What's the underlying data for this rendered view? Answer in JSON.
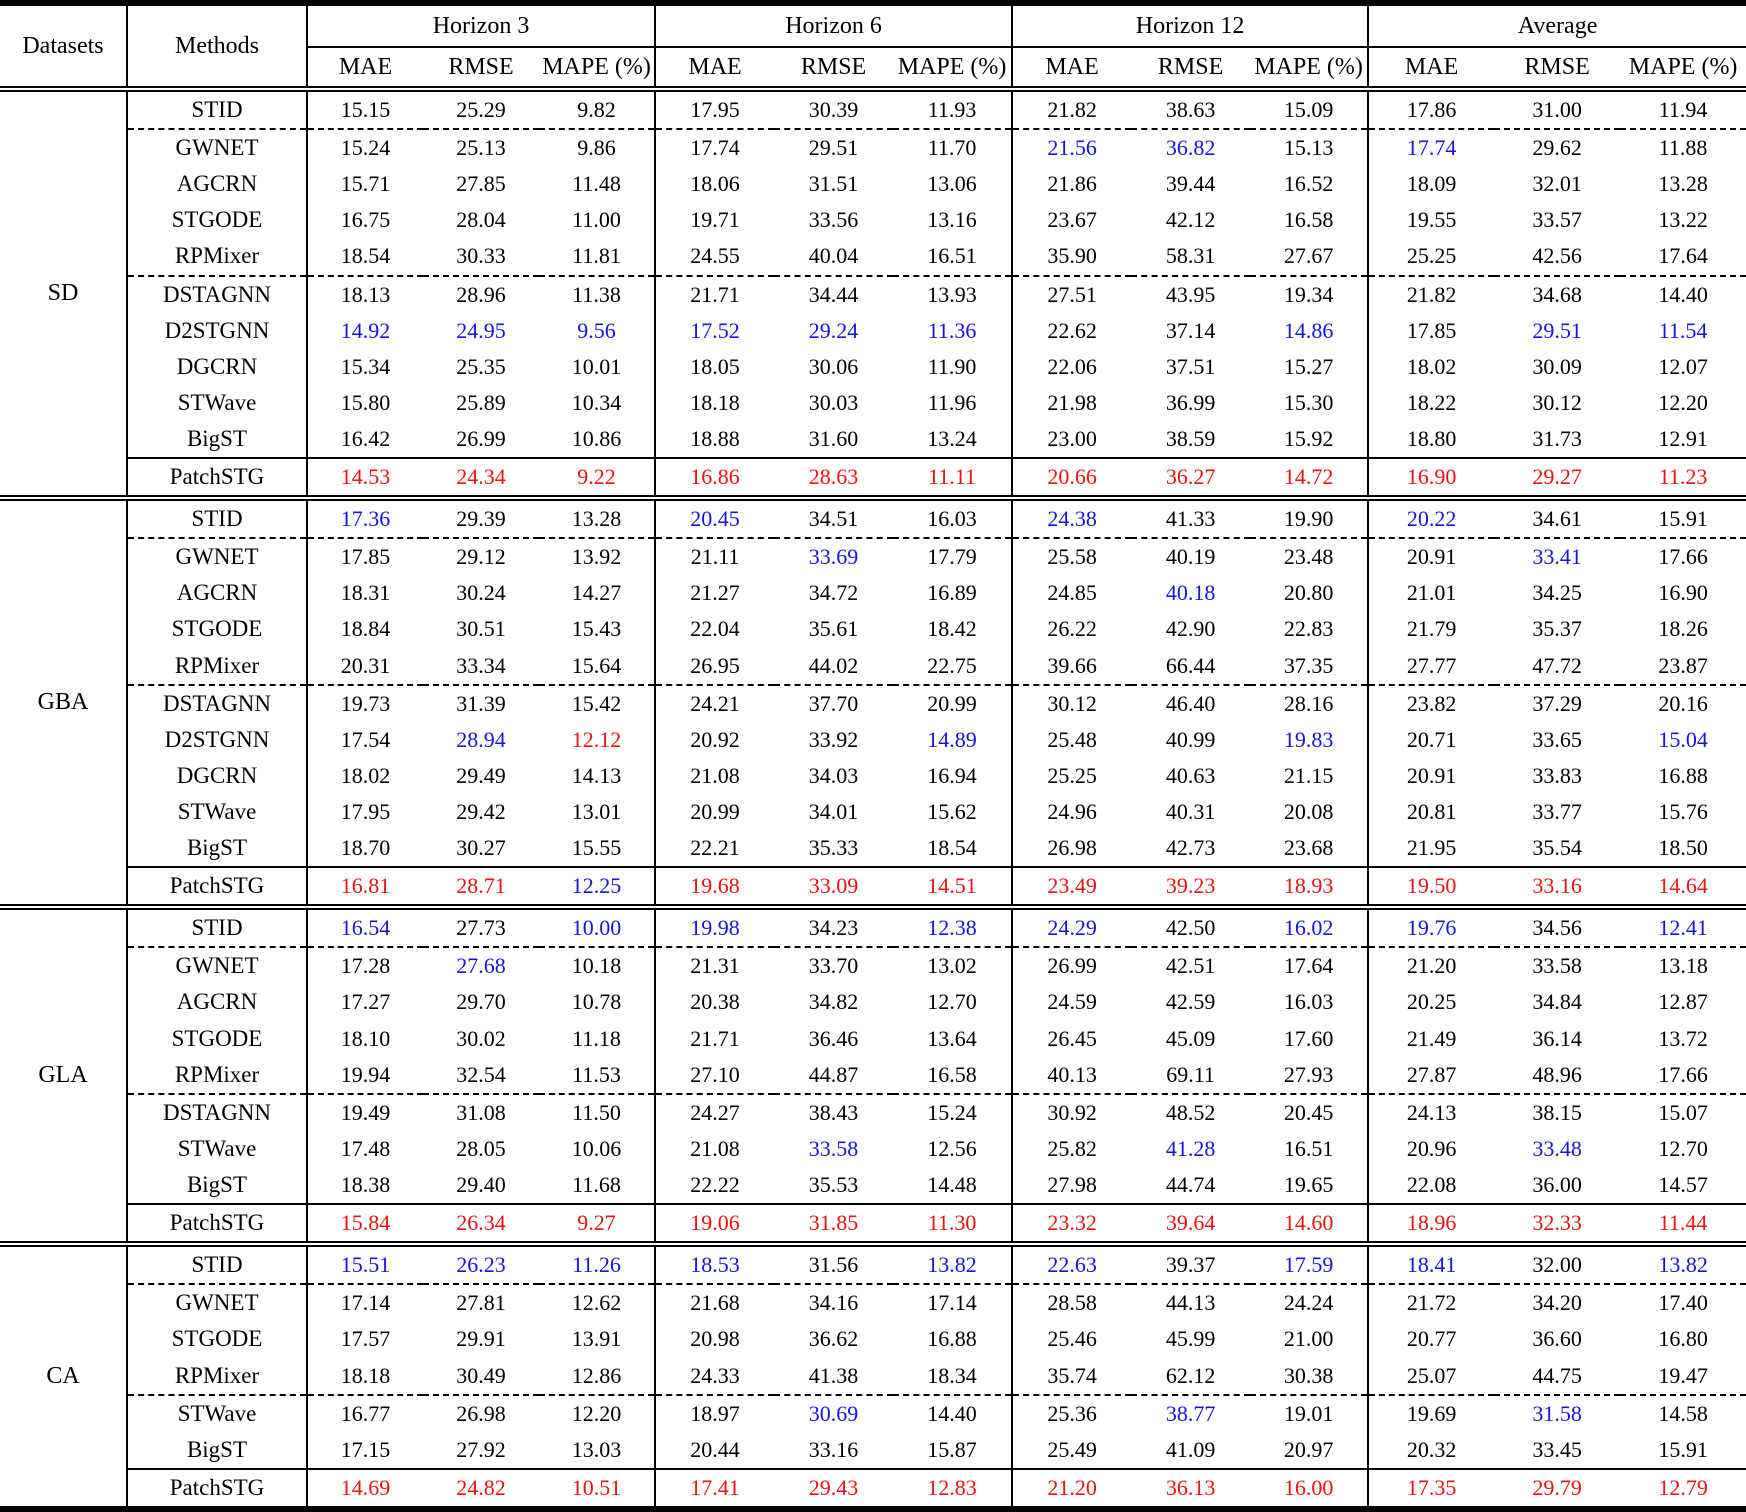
{
  "table": {
    "header": {
      "datasets_label": "Datasets",
      "methods_label": "Methods",
      "groups": [
        {
          "label": "Horizon 3",
          "cols": [
            "MAE",
            "RMSE",
            "MAPE (%)"
          ]
        },
        {
          "label": "Horizon 6",
          "cols": [
            "MAE",
            "RMSE",
            "MAPE (%)"
          ]
        },
        {
          "label": "Horizon 12",
          "cols": [
            "MAE",
            "RMSE",
            "MAPE (%)"
          ]
        },
        {
          "label": "Average",
          "cols": [
            "MAE",
            "RMSE",
            "MAPE (%)"
          ]
        }
      ]
    },
    "emphasis_colors": {
      "best": "#ee1111",
      "second_best": "#1414e0",
      "normal": "#000000"
    },
    "emphasis_legend": {
      "r": "best (red)",
      "b": "second best (blue)",
      "k": "normal (black)"
    },
    "sections": [
      {
        "dataset": "SD",
        "rows": [
          {
            "method": "STID",
            "values": [
              "15.15",
              "25.29",
              "9.82",
              "17.95",
              "30.39",
              "11.93",
              "21.82",
              "38.63",
              "15.09",
              "17.86",
              "31.00",
              "11.94"
            ],
            "styles": "kkkkkkkkkkkk",
            "rule_below": "dashed"
          },
          {
            "method": "GWNET",
            "values": [
              "15.24",
              "25.13",
              "9.86",
              "17.74",
              "29.51",
              "11.70",
              "21.56",
              "36.82",
              "15.13",
              "17.74",
              "29.62",
              "11.88"
            ],
            "styles": "kkkkkkbbkbkk"
          },
          {
            "method": "AGCRN",
            "values": [
              "15.71",
              "27.85",
              "11.48",
              "18.06",
              "31.51",
              "13.06",
              "21.86",
              "39.44",
              "16.52",
              "18.09",
              "32.01",
              "13.28"
            ],
            "styles": "kkkkkkkkkkkk"
          },
          {
            "method": "STGODE",
            "values": [
              "16.75",
              "28.04",
              "11.00",
              "19.71",
              "33.56",
              "13.16",
              "23.67",
              "42.12",
              "16.58",
              "19.55",
              "33.57",
              "13.22"
            ],
            "styles": "kkkkkkkkkkkk"
          },
          {
            "method": "RPMixer",
            "values": [
              "18.54",
              "30.33",
              "11.81",
              "24.55",
              "40.04",
              "16.51",
              "35.90",
              "58.31",
              "27.67",
              "25.25",
              "42.56",
              "17.64"
            ],
            "styles": "kkkkkkkkkkkk",
            "rule_below": "dashed"
          },
          {
            "method": "DSTAGNN",
            "values": [
              "18.13",
              "28.96",
              "11.38",
              "21.71",
              "34.44",
              "13.93",
              "27.51",
              "43.95",
              "19.34",
              "21.82",
              "34.68",
              "14.40"
            ],
            "styles": "kkkkkkkkkkkk"
          },
          {
            "method": "D2STGNN",
            "values": [
              "14.92",
              "24.95",
              "9.56",
              "17.52",
              "29.24",
              "11.36",
              "22.62",
              "37.14",
              "14.86",
              "17.85",
              "29.51",
              "11.54"
            ],
            "styles": "bbbbbbkkbkbb"
          },
          {
            "method": "DGCRN",
            "values": [
              "15.34",
              "25.35",
              "10.01",
              "18.05",
              "30.06",
              "11.90",
              "22.06",
              "37.51",
              "15.27",
              "18.02",
              "30.09",
              "12.07"
            ],
            "styles": "kkkkkkkkkkkk"
          },
          {
            "method": "STWave",
            "values": [
              "15.80",
              "25.89",
              "10.34",
              "18.18",
              "30.03",
              "11.96",
              "21.98",
              "36.99",
              "15.30",
              "18.22",
              "30.12",
              "12.20"
            ],
            "styles": "kkkkkkkkkkkk"
          },
          {
            "method": "BigST",
            "values": [
              "16.42",
              "26.99",
              "10.86",
              "18.88",
              "31.60",
              "13.24",
              "23.00",
              "38.59",
              "15.92",
              "18.80",
              "31.73",
              "12.91"
            ],
            "styles": "kkkkkkkkkkkk"
          },
          {
            "method": "PatchSTG",
            "values": [
              "14.53",
              "24.34",
              "9.22",
              "16.86",
              "28.63",
              "11.11",
              "20.66",
              "36.27",
              "14.72",
              "16.90",
              "29.27",
              "11.23"
            ],
            "styles": "rrrrrrrrrrrr",
            "rule_above": "solid"
          }
        ]
      },
      {
        "dataset": "GBA",
        "rows": [
          {
            "method": "STID",
            "values": [
              "17.36",
              "29.39",
              "13.28",
              "20.45",
              "34.51",
              "16.03",
              "24.38",
              "41.33",
              "19.90",
              "20.22",
              "34.61",
              "15.91"
            ],
            "styles": "bkkbkkbkkbkk",
            "rule_below": "dashed"
          },
          {
            "method": "GWNET",
            "values": [
              "17.85",
              "29.12",
              "13.92",
              "21.11",
              "33.69",
              "17.79",
              "25.58",
              "40.19",
              "23.48",
              "20.91",
              "33.41",
              "17.66"
            ],
            "styles": "kkkkbkkkkkbk"
          },
          {
            "method": "AGCRN",
            "values": [
              "18.31",
              "30.24",
              "14.27",
              "21.27",
              "34.72",
              "16.89",
              "24.85",
              "40.18",
              "20.80",
              "21.01",
              "34.25",
              "16.90"
            ],
            "styles": "kkkkkkkbkkkk"
          },
          {
            "method": "STGODE",
            "values": [
              "18.84",
              "30.51",
              "15.43",
              "22.04",
              "35.61",
              "18.42",
              "26.22",
              "42.90",
              "22.83",
              "21.79",
              "35.37",
              "18.26"
            ],
            "styles": "kkkkkkkkkkkk"
          },
          {
            "method": "RPMixer",
            "values": [
              "20.31",
              "33.34",
              "15.64",
              "26.95",
              "44.02",
              "22.75",
              "39.66",
              "66.44",
              "37.35",
              "27.77",
              "47.72",
              "23.87"
            ],
            "styles": "kkkkkkkkkkkk",
            "rule_below": "dashed"
          },
          {
            "method": "DSTAGNN",
            "values": [
              "19.73",
              "31.39",
              "15.42",
              "24.21",
              "37.70",
              "20.99",
              "30.12",
              "46.40",
              "28.16",
              "23.82",
              "37.29",
              "20.16"
            ],
            "styles": "kkkkkkkkkkkk"
          },
          {
            "method": "D2STGNN",
            "values": [
              "17.54",
              "28.94",
              "12.12",
              "20.92",
              "33.92",
              "14.89",
              "25.48",
              "40.99",
              "19.83",
              "20.71",
              "33.65",
              "15.04"
            ],
            "styles": "kbrkkbkkbkkb"
          },
          {
            "method": "DGCRN",
            "values": [
              "18.02",
              "29.49",
              "14.13",
              "21.08",
              "34.03",
              "16.94",
              "25.25",
              "40.63",
              "21.15",
              "20.91",
              "33.83",
              "16.88"
            ],
            "styles": "kkkkkkkkkkkk"
          },
          {
            "method": "STWave",
            "values": [
              "17.95",
              "29.42",
              "13.01",
              "20.99",
              "34.01",
              "15.62",
              "24.96",
              "40.31",
              "20.08",
              "20.81",
              "33.77",
              "15.76"
            ],
            "styles": "kkkkkkkkkkkk"
          },
          {
            "method": "BigST",
            "values": [
              "18.70",
              "30.27",
              "15.55",
              "22.21",
              "35.33",
              "18.54",
              "26.98",
              "42.73",
              "23.68",
              "21.95",
              "35.54",
              "18.50"
            ],
            "styles": "kkkkkkkkkkkk"
          },
          {
            "method": "PatchSTG",
            "values": [
              "16.81",
              "28.71",
              "12.25",
              "19.68",
              "33.09",
              "14.51",
              "23.49",
              "39.23",
              "18.93",
              "19.50",
              "33.16",
              "14.64"
            ],
            "styles": "rrbrrrrrrrrr",
            "rule_above": "solid"
          }
        ]
      },
      {
        "dataset": "GLA",
        "rows": [
          {
            "method": "STID",
            "values": [
              "16.54",
              "27.73",
              "10.00",
              "19.98",
              "34.23",
              "12.38",
              "24.29",
              "42.50",
              "16.02",
              "19.76",
              "34.56",
              "12.41"
            ],
            "styles": "bkbbkbbkbbkb",
            "rule_below": "dashed"
          },
          {
            "method": "GWNET",
            "values": [
              "17.28",
              "27.68",
              "10.18",
              "21.31",
              "33.70",
              "13.02",
              "26.99",
              "42.51",
              "17.64",
              "21.20",
              "33.58",
              "13.18"
            ],
            "styles": "kbkkkkkkkkkk"
          },
          {
            "method": "AGCRN",
            "values": [
              "17.27",
              "29.70",
              "10.78",
              "20.38",
              "34.82",
              "12.70",
              "24.59",
              "42.59",
              "16.03",
              "20.25",
              "34.84",
              "12.87"
            ],
            "styles": "kkkkkkkkkkkk"
          },
          {
            "method": "STGODE",
            "values": [
              "18.10",
              "30.02",
              "11.18",
              "21.71",
              "36.46",
              "13.64",
              "26.45",
              "45.09",
              "17.60",
              "21.49",
              "36.14",
              "13.72"
            ],
            "styles": "kkkkkkkkkkkk"
          },
          {
            "method": "RPMixer",
            "values": [
              "19.94",
              "32.54",
              "11.53",
              "27.10",
              "44.87",
              "16.58",
              "40.13",
              "69.11",
              "27.93",
              "27.87",
              "48.96",
              "17.66"
            ],
            "styles": "kkkkkkkkkkkk",
            "rule_below": "dashed"
          },
          {
            "method": "DSTAGNN",
            "values": [
              "19.49",
              "31.08",
              "11.50",
              "24.27",
              "38.43",
              "15.24",
              "30.92",
              "48.52",
              "20.45",
              "24.13",
              "38.15",
              "15.07"
            ],
            "styles": "kkkkkkkkkkkk"
          },
          {
            "method": "STWave",
            "values": [
              "17.48",
              "28.05",
              "10.06",
              "21.08",
              "33.58",
              "12.56",
              "25.82",
              "41.28",
              "16.51",
              "20.96",
              "33.48",
              "12.70"
            ],
            "styles": "kkkkbkkbkkbk"
          },
          {
            "method": "BigST",
            "values": [
              "18.38",
              "29.40",
              "11.68",
              "22.22",
              "35.53",
              "14.48",
              "27.98",
              "44.74",
              "19.65",
              "22.08",
              "36.00",
              "14.57"
            ],
            "styles": "kkkkkkkkkkkk"
          },
          {
            "method": "PatchSTG",
            "values": [
              "15.84",
              "26.34",
              "9.27",
              "19.06",
              "31.85",
              "11.30",
              "23.32",
              "39.64",
              "14.60",
              "18.96",
              "32.33",
              "11.44"
            ],
            "styles": "rrrrrrrrrrrr",
            "rule_above": "solid"
          }
        ]
      },
      {
        "dataset": "CA",
        "rows": [
          {
            "method": "STID",
            "values": [
              "15.51",
              "26.23",
              "11.26",
              "18.53",
              "31.56",
              "13.82",
              "22.63",
              "39.37",
              "17.59",
              "18.41",
              "32.00",
              "13.82"
            ],
            "styles": "bbbbkbbkbbkb",
            "rule_below": "dashed"
          },
          {
            "method": "GWNET",
            "values": [
              "17.14",
              "27.81",
              "12.62",
              "21.68",
              "34.16",
              "17.14",
              "28.58",
              "44.13",
              "24.24",
              "21.72",
              "34.20",
              "17.40"
            ],
            "styles": "kkkkkkkkkkkk"
          },
          {
            "method": "STGODE",
            "values": [
              "17.57",
              "29.91",
              "13.91",
              "20.98",
              "36.62",
              "16.88",
              "25.46",
              "45.99",
              "21.00",
              "20.77",
              "36.60",
              "16.80"
            ],
            "styles": "kkkkkkkkkkkk"
          },
          {
            "method": "RPMixer",
            "values": [
              "18.18",
              "30.49",
              "12.86",
              "24.33",
              "41.38",
              "18.34",
              "35.74",
              "62.12",
              "30.38",
              "25.07",
              "44.75",
              "19.47"
            ],
            "styles": "kkkkkkkkkkkk",
            "rule_below": "dashed"
          },
          {
            "method": "STWave",
            "values": [
              "16.77",
              "26.98",
              "12.20",
              "18.97",
              "30.69",
              "14.40",
              "25.36",
              "38.77",
              "19.01",
              "19.69",
              "31.58",
              "14.58"
            ],
            "styles": "kkkkbkkbkkbk"
          },
          {
            "method": "BigST",
            "values": [
              "17.15",
              "27.92",
              "13.03",
              "20.44",
              "33.16",
              "15.87",
              "25.49",
              "41.09",
              "20.97",
              "20.32",
              "33.45",
              "15.91"
            ],
            "styles": "kkkkkkkkkkkk"
          },
          {
            "method": "PatchSTG",
            "values": [
              "14.69",
              "24.82",
              "10.51",
              "17.41",
              "29.43",
              "12.83",
              "21.20",
              "36.13",
              "16.00",
              "17.35",
              "29.79",
              "12.79"
            ],
            "styles": "rrrrrrrrrrrr",
            "rule_above": "solid"
          }
        ]
      }
    ]
  }
}
